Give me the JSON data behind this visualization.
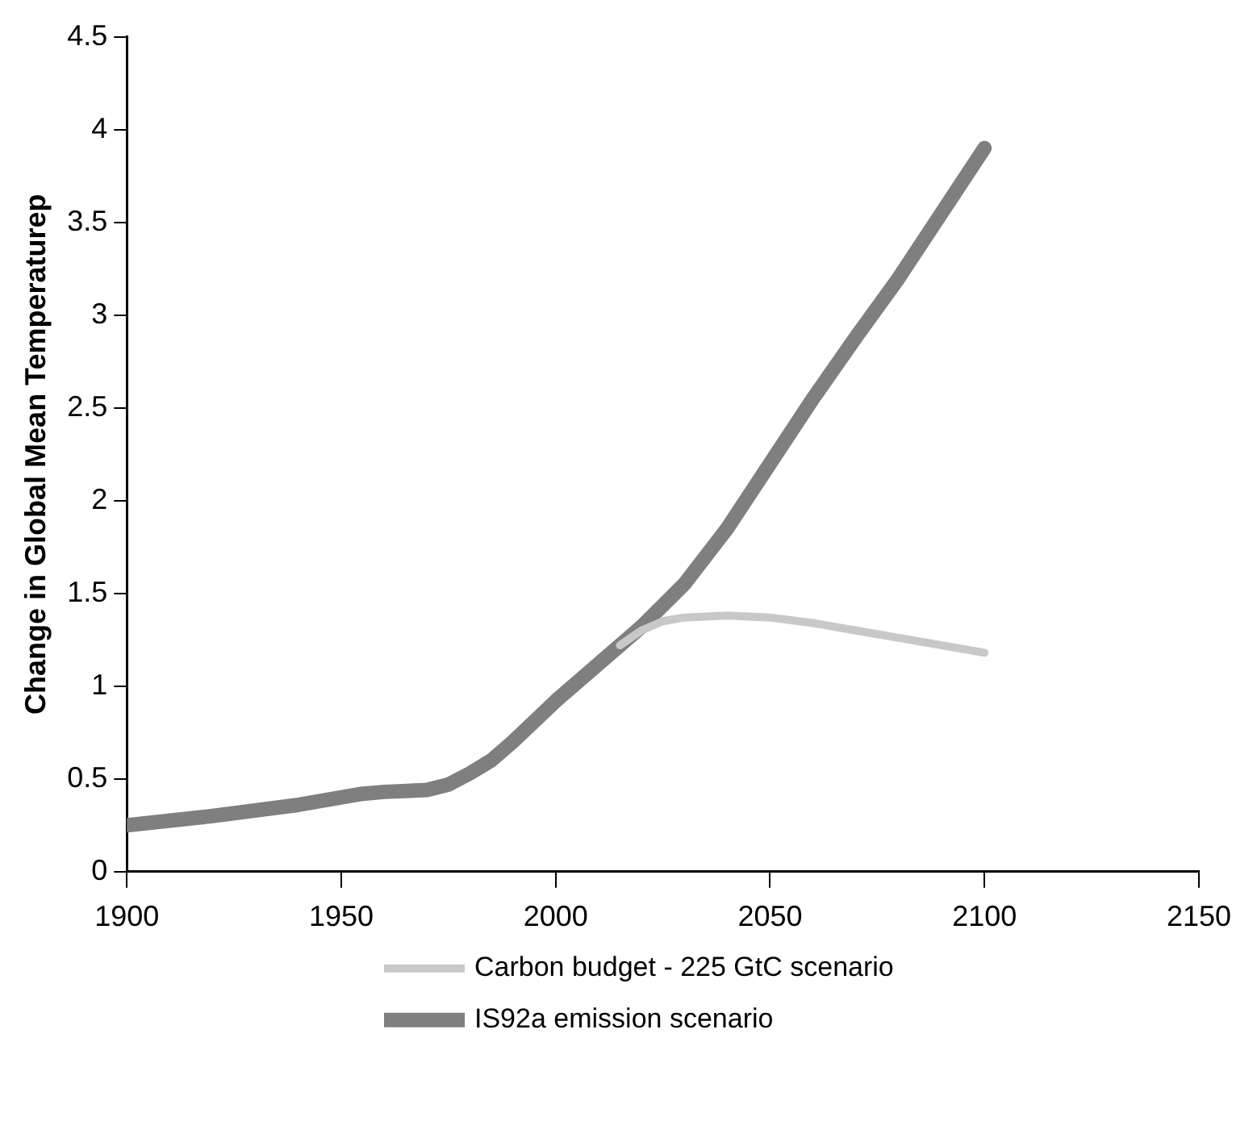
{
  "chart_data": {
    "type": "line",
    "ylabel": "Change in Global Mean Temperaturep",
    "xlim": [
      1900,
      2150
    ],
    "xticks": [
      1900,
      1950,
      2000,
      2050,
      2100,
      2150
    ],
    "ylim": [
      0,
      4.5
    ],
    "yticks": [
      0,
      0.5,
      1,
      1.5,
      2,
      2.5,
      3,
      3.5,
      4,
      4.5
    ],
    "grid": false,
    "legend": "bottom",
    "marker": "none",
    "series": [
      {
        "name": "Carbon budget - 225 GtC scenario",
        "color": "#c8c8c8",
        "x": [
          2015,
          2020,
          2025,
          2030,
          2040,
          2050,
          2060,
          2070,
          2080,
          2090,
          2100
        ],
        "values": [
          1.22,
          1.3,
          1.35,
          1.37,
          1.38,
          1.37,
          1.34,
          1.3,
          1.26,
          1.22,
          1.18
        ]
      },
      {
        "name": "IS92a emission scenario",
        "color": "#7f7f7f",
        "x": [
          1900,
          1920,
          1940,
          1955,
          1960,
          1970,
          1975,
          1980,
          1985,
          1990,
          2000,
          2010,
          2020,
          2030,
          2040,
          2050,
          2060,
          2070,
          2080,
          2090,
          2100
        ],
        "values": [
          0.25,
          0.3,
          0.36,
          0.42,
          0.43,
          0.44,
          0.47,
          0.53,
          0.6,
          0.7,
          0.92,
          1.12,
          1.32,
          1.55,
          1.85,
          2.2,
          2.55,
          2.88,
          3.2,
          3.55,
          3.9
        ]
      }
    ]
  }
}
